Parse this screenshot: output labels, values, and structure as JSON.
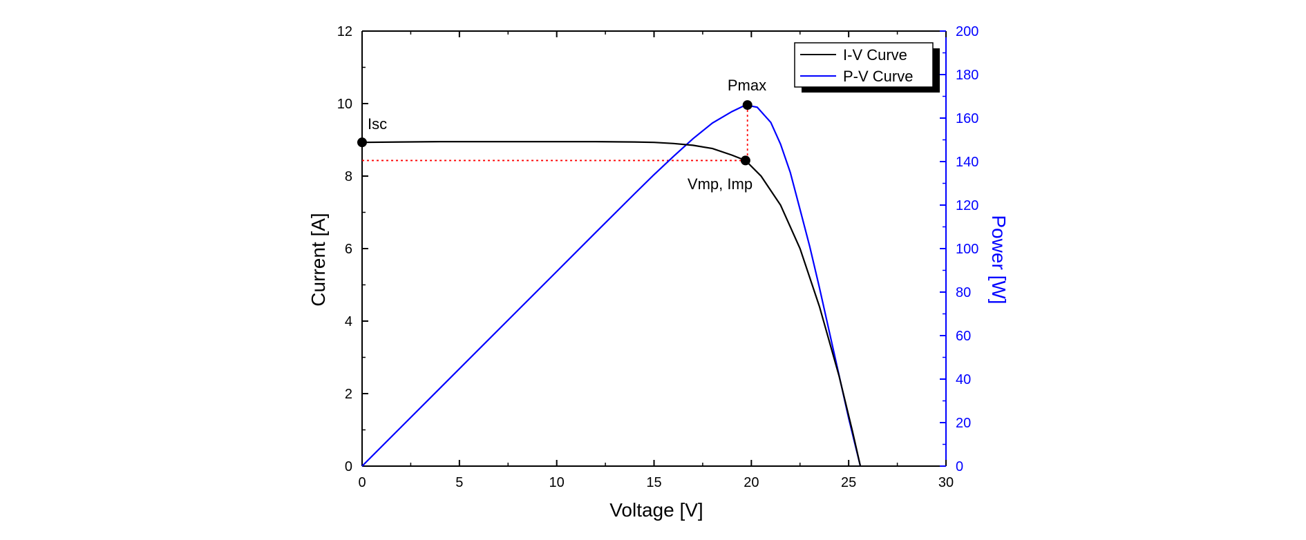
{
  "chart_data": {
    "type": "line",
    "xlabel": "Voltage [V]",
    "ylabel_left": "Current [A]",
    "ylabel_right": "Power [W]",
    "xlim": [
      0,
      30
    ],
    "ylim_left": [
      0,
      12
    ],
    "ylim_right": [
      0,
      200
    ],
    "x_ticks": [
      "0",
      "5",
      "10",
      "15",
      "20",
      "25",
      "30"
    ],
    "y_left_ticks": [
      "0",
      "2",
      "4",
      "6",
      "8",
      "10",
      "12"
    ],
    "y_right_ticks": [
      "0",
      "20",
      "40",
      "60",
      "80",
      "100",
      "120",
      "140",
      "160",
      "180",
      "200"
    ],
    "grid": false,
    "legend_position": "top-right",
    "series": [
      {
        "name": "I-V Curve",
        "axis": "left",
        "color": "#000000",
        "x": [
          0,
          2,
          4,
          6,
          8,
          10,
          12,
          14,
          15,
          16,
          17,
          18,
          19,
          19.7,
          20.5,
          21.5,
          22.5,
          23.5,
          24.5,
          25.2,
          25.6
        ],
        "y": [
          8.93,
          8.94,
          8.95,
          8.95,
          8.95,
          8.95,
          8.95,
          8.94,
          8.93,
          8.9,
          8.85,
          8.76,
          8.58,
          8.43,
          8.0,
          7.2,
          6.0,
          4.4,
          2.5,
          0.95,
          0
        ]
      },
      {
        "name": "P-V Curve",
        "axis": "right",
        "color": "#0000ff",
        "x": [
          0,
          2,
          4,
          6,
          8,
          10,
          12,
          14,
          15,
          16,
          17,
          18,
          19,
          19.7,
          20.3,
          21,
          21.5,
          22,
          22.5,
          23,
          23.5,
          24,
          24.5,
          25,
          25.3,
          25.6
        ],
        "y": [
          0,
          17.9,
          35.8,
          53.7,
          71.6,
          89.5,
          107.4,
          125.2,
          134,
          142.4,
          150.5,
          157.7,
          163,
          166,
          165,
          158,
          148,
          135,
          118,
          101,
          82,
          62,
          42,
          22,
          11,
          0
        ]
      }
    ],
    "annotations": {
      "isc": "Isc",
      "pmax": "Pmax",
      "vmp_imp": "Vmp, Imp"
    },
    "marked_points": [
      {
        "label": "Isc",
        "x": 0,
        "y": 8.93,
        "axis": "left"
      },
      {
        "label": "Pmax",
        "x": 19.8,
        "y": 166,
        "axis": "right"
      },
      {
        "label": "Vmp, Imp",
        "x": 19.7,
        "y": 8.43,
        "axis": "left"
      }
    ],
    "colors": {
      "iv_curve": "#000000",
      "pv_curve": "#0000ff",
      "reference_lines": "#ff0000",
      "right_axis": "#0000ff"
    }
  }
}
